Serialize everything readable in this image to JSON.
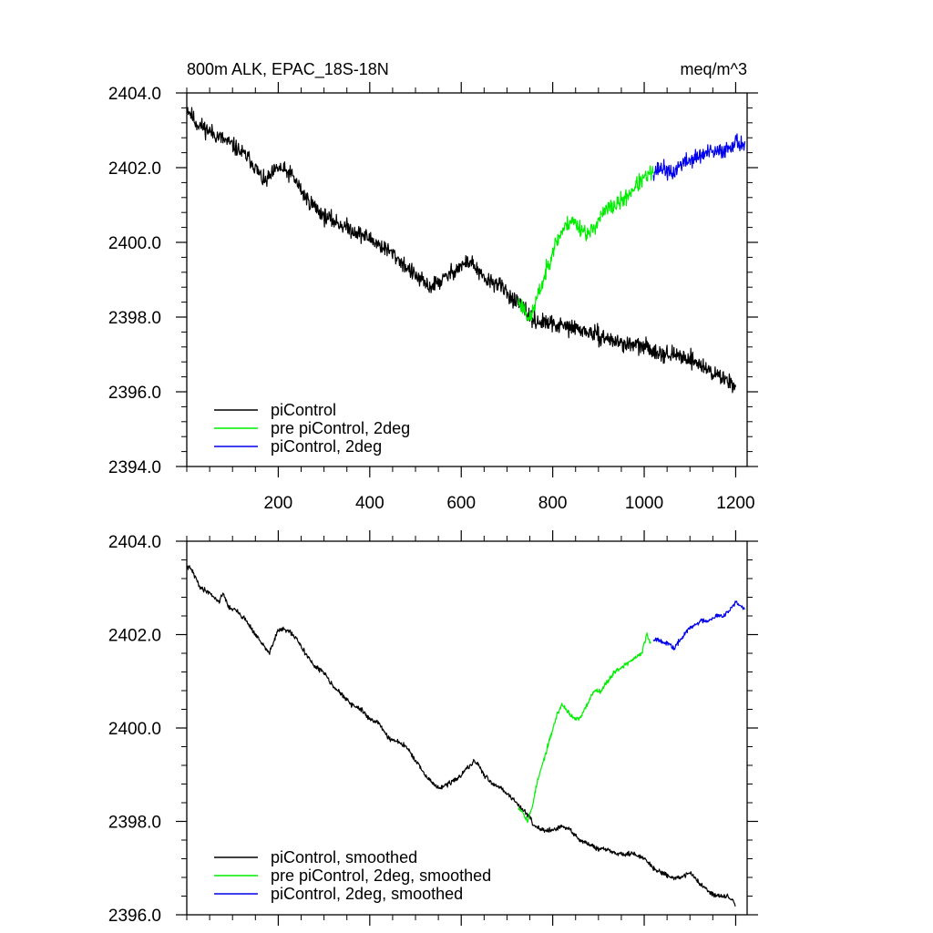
{
  "colors": {
    "piControl": "#000000",
    "pre_piControl_2deg": "#00ee00",
    "piControl_2deg": "#0000ee"
  },
  "chart_data": [
    {
      "type": "line",
      "title_left": "800m ALK, EPAC_18S-18N",
      "title_right": "meq/m^3",
      "xlim": [
        0,
        1225
      ],
      "ylim": [
        2394,
        2404
      ],
      "x_ticks": [
        200,
        400,
        600,
        800,
        1000,
        1200
      ],
      "x_tick_labels": [
        "200",
        "400",
        "600",
        "800",
        "1000",
        "1200"
      ],
      "y_ticks": [
        2394,
        2396,
        2398,
        2400,
        2402,
        2404
      ],
      "y_tick_labels": [
        "2394.0",
        "2396.0",
        "2398.0",
        "2400.0",
        "2402.0",
        "2404.0"
      ],
      "legend_position": "bottom-left",
      "series": [
        {
          "name": "piControl",
          "color_key": "piControl",
          "noise": 0.22,
          "seed": 11,
          "x": [
            1,
            20,
            60,
            100,
            140,
            170,
            200,
            230,
            260,
            300,
            350,
            400,
            450,
            500,
            530,
            560,
            590,
            620,
            650,
            680,
            720,
            760,
            800,
            850,
            900,
            950,
            1000,
            1050,
            1100,
            1150,
            1200
          ],
          "y": [
            2403.6,
            2403.2,
            2402.9,
            2402.6,
            2402.2,
            2401.6,
            2402.0,
            2401.8,
            2401.2,
            2400.7,
            2400.4,
            2400.1,
            2399.7,
            2399.1,
            2398.8,
            2399.0,
            2399.3,
            2399.5,
            2399.0,
            2398.9,
            2398.4,
            2397.9,
            2397.8,
            2397.7,
            2397.5,
            2397.3,
            2397.2,
            2397.0,
            2396.9,
            2396.5,
            2396.2
          ]
        },
        {
          "name": "pre piControl, 2deg",
          "color_key": "pre_piControl_2deg",
          "noise": 0.22,
          "seed": 23,
          "x": [
            725,
            740,
            750,
            760,
            780,
            800,
            820,
            840,
            860,
            880,
            900,
            920,
            940,
            960,
            980,
            1000,
            1020
          ],
          "y": [
            2398.4,
            2398.2,
            2397.9,
            2398.3,
            2399.0,
            2399.8,
            2400.3,
            2400.6,
            2400.4,
            2400.2,
            2400.6,
            2400.9,
            2401.0,
            2401.2,
            2401.5,
            2401.7,
            2401.9
          ]
        },
        {
          "name": "piControl, 2deg",
          "color_key": "piControl_2deg",
          "noise": 0.22,
          "seed": 37,
          "x": [
            1020,
            1040,
            1060,
            1080,
            1100,
            1120,
            1140,
            1160,
            1180,
            1200,
            1220
          ],
          "y": [
            2401.9,
            2402.0,
            2401.8,
            2402.1,
            2402.2,
            2402.3,
            2402.4,
            2402.4,
            2402.5,
            2402.7,
            2402.6
          ]
        }
      ]
    },
    {
      "type": "line",
      "xlim": [
        0,
        1225
      ],
      "ylim": [
        2396,
        2404
      ],
      "x_ticks": [
        200,
        400,
        600,
        800,
        1000,
        1200
      ],
      "y_ticks": [
        2396,
        2398,
        2400,
        2402,
        2404
      ],
      "y_tick_labels": [
        "2396.0",
        "2398.0",
        "2400.0",
        "2402.0",
        "2404.0"
      ],
      "legend_position": "bottom-left",
      "series": [
        {
          "name": "piControl, smoothed",
          "color_key": "piControl",
          "noise": 0.05,
          "seed": 41,
          "x": [
            1,
            10,
            30,
            50,
            70,
            80,
            90,
            110,
            130,
            150,
            180,
            200,
            220,
            240,
            260,
            280,
            300,
            320,
            340,
            360,
            380,
            400,
            420,
            440,
            460,
            480,
            500,
            520,
            540,
            550,
            570,
            590,
            610,
            630,
            650,
            670,
            690,
            710,
            730,
            750,
            760,
            780,
            800,
            820,
            840,
            860,
            880,
            900,
            920,
            940,
            960,
            980,
            1000,
            1020,
            1040,
            1060,
            1080,
            1100,
            1120,
            1140,
            1160,
            1180,
            1195,
            1200
          ],
          "y": [
            2403.45,
            2403.4,
            2403.0,
            2402.9,
            2402.7,
            2402.9,
            2402.6,
            2402.5,
            2402.3,
            2402.0,
            2401.6,
            2402.1,
            2402.1,
            2401.9,
            2401.6,
            2401.3,
            2401.2,
            2400.9,
            2400.7,
            2400.5,
            2400.4,
            2400.2,
            2400.1,
            2399.8,
            2399.7,
            2399.6,
            2399.3,
            2399.0,
            2398.8,
            2398.7,
            2398.8,
            2398.9,
            2399.1,
            2399.3,
            2399.0,
            2398.8,
            2398.7,
            2398.5,
            2398.3,
            2398.1,
            2397.9,
            2397.8,
            2397.8,
            2397.9,
            2397.8,
            2397.6,
            2397.5,
            2397.4,
            2397.4,
            2397.3,
            2397.3,
            2397.3,
            2397.2,
            2397.0,
            2396.9,
            2396.8,
            2396.8,
            2396.9,
            2396.7,
            2396.5,
            2396.4,
            2396.4,
            2396.3,
            2396.2
          ]
        },
        {
          "name": "pre piControl, 2deg, smoothed",
          "color_key": "pre_piControl_2deg",
          "noise": 0.05,
          "seed": 53,
          "x": [
            725,
            735,
            745,
            755,
            765,
            780,
            795,
            810,
            820,
            830,
            845,
            860,
            875,
            890,
            905,
            920,
            935,
            950,
            965,
            980,
            995,
            1005,
            1015
          ],
          "y": [
            2398.3,
            2398.2,
            2398.0,
            2398.3,
            2398.8,
            2399.3,
            2399.8,
            2400.3,
            2400.5,
            2400.4,
            2400.2,
            2400.2,
            2400.5,
            2400.8,
            2400.8,
            2401.0,
            2401.2,
            2401.3,
            2401.4,
            2401.5,
            2401.6,
            2402.0,
            2401.8
          ]
        },
        {
          "name": "piControl, 2deg, smoothed",
          "color_key": "piControl_2deg",
          "noise": 0.05,
          "seed": 67,
          "x": [
            1020,
            1035,
            1045,
            1055,
            1065,
            1080,
            1095,
            1110,
            1125,
            1140,
            1155,
            1170,
            1185,
            1200,
            1210,
            1220
          ],
          "y": [
            2401.9,
            2401.9,
            2401.8,
            2401.8,
            2401.7,
            2401.9,
            2402.1,
            2402.2,
            2402.3,
            2402.3,
            2402.4,
            2402.4,
            2402.5,
            2402.7,
            2402.6,
            2402.55
          ]
        }
      ]
    }
  ]
}
